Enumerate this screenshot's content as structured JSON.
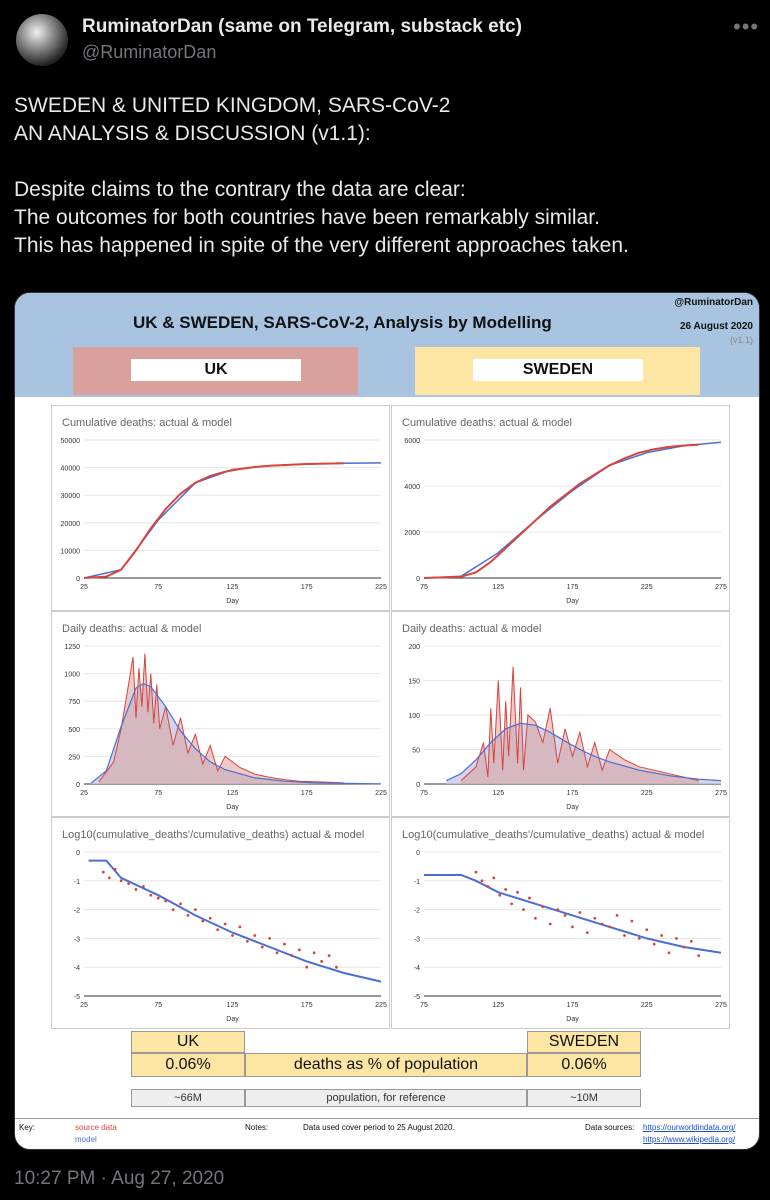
{
  "author": {
    "name": "RuminatorDan (same on Telegram, substack etc)",
    "handle": "@RuminatorDan"
  },
  "tweet": {
    "line1": "SWEDEN & UNITED KINGDOM, SARS-CoV-2",
    "line2": "AN ANALYSIS & DISCUSSION (v1.1):",
    "line3": "Despite claims to the contrary the data are clear:",
    "line4": "The outcomes for both countries have been remarkably similar.",
    "line5": "This has happened in spite of the very different approaches taken."
  },
  "timestamp": "10:27 PM · Aug 27, 2020",
  "more_icon": "•••",
  "image": {
    "title": "UK & SWEDEN, SARS-CoV-2, Analysis by Modelling",
    "handle": "@RuminatorDan",
    "date": "26 August 2020",
    "version": "(v1.1)",
    "left_country": "UK",
    "right_country": "SWEDEN",
    "colors": {
      "header_bg": "#a8c4e0",
      "uk_box": "#d9a09c",
      "sweden_box": "#fde5a4",
      "source": "#d9443a",
      "model": "#4a6fd4"
    },
    "table": {
      "uk_label": "UK",
      "sweden_label": "SWEDEN",
      "uk_pct": "0.06%",
      "sweden_pct": "0.06%",
      "middle_label": "deaths as % of population",
      "uk_pop": "~66M",
      "sweden_pop": "~10M",
      "pop_label": "population, for reference"
    },
    "footer": {
      "key_label": "Key:",
      "source_label": "source data",
      "model_label": "model",
      "notes_label": "Notes:",
      "notes_text": "Data used cover period to 25 August 2020.",
      "sources_label": "Data sources:",
      "source1": "https://ourworldindata.org/",
      "source2": "https://www.wikipedia.org/"
    }
  },
  "chart_data": [
    {
      "type": "line",
      "title": "Cumulative deaths: actual & model",
      "xlabel": "Day",
      "ylabel": "",
      "xlim": [
        25,
        225
      ],
      "ylim": [
        0,
        50000
      ],
      "xticks": [
        25,
        75,
        125,
        175,
        225
      ],
      "yticks": [
        0,
        10000,
        20000,
        30000,
        40000,
        50000
      ],
      "series": [
        {
          "name": "source data",
          "x": [
            25,
            40,
            50,
            60,
            70,
            80,
            90,
            100,
            110,
            120,
            130,
            140,
            150,
            175,
            200
          ],
          "y": [
            0,
            500,
            3000,
            10000,
            18000,
            25000,
            30500,
            34500,
            37000,
            38500,
            39500,
            40200,
            40700,
            41300,
            41600
          ]
        },
        {
          "name": "model",
          "x": [
            25,
            50,
            75,
            100,
            125,
            150,
            175,
            200,
            225
          ],
          "y": [
            0,
            3000,
            21000,
            34500,
            39300,
            40700,
            41300,
            41600,
            41700
          ]
        }
      ]
    },
    {
      "type": "line",
      "title": "Cumulative deaths: actual & model",
      "xlabel": "Day",
      "ylabel": "",
      "xlim": [
        75,
        275
      ],
      "ylim": [
        0,
        6000
      ],
      "xticks": [
        75,
        125,
        175,
        225,
        275
      ],
      "yticks": [
        0,
        2000,
        4000,
        6000
      ],
      "series": [
        {
          "name": "source data",
          "x": [
            75,
            100,
            110,
            120,
            130,
            140,
            150,
            160,
            170,
            180,
            190,
            200,
            210,
            220,
            230,
            240,
            250,
            260
          ],
          "y": [
            0,
            50,
            250,
            700,
            1300,
            1900,
            2500,
            3100,
            3600,
            4100,
            4500,
            4900,
            5200,
            5450,
            5600,
            5700,
            5760,
            5800
          ]
        },
        {
          "name": "model",
          "x": [
            75,
            100,
            125,
            150,
            175,
            200,
            225,
            250,
            275
          ],
          "y": [
            0,
            80,
            1100,
            2500,
            3800,
            4900,
            5450,
            5750,
            5900
          ]
        }
      ]
    },
    {
      "type": "area",
      "title": "Daily deaths: actual & model",
      "xlabel": "Day",
      "ylabel": "",
      "xlim": [
        25,
        225
      ],
      "ylim": [
        0,
        1250
      ],
      "xticks": [
        25,
        75,
        125,
        175,
        225
      ],
      "yticks": [
        0,
        250,
        500,
        750,
        1000,
        1250
      ],
      "series": [
        {
          "name": "source data",
          "x": [
            35,
            45,
            50,
            55,
            58,
            60,
            62,
            64,
            66,
            68,
            70,
            72,
            74,
            76,
            80,
            85,
            90,
            95,
            100,
            105,
            110,
            115,
            120,
            130,
            140,
            150,
            160,
            170,
            180,
            190,
            200
          ],
          "y": [
            20,
            200,
            500,
            900,
            1150,
            600,
            1050,
            700,
            1180,
            650,
            1000,
            550,
            900,
            500,
            700,
            350,
            600,
            280,
            450,
            180,
            350,
            120,
            250,
            150,
            90,
            60,
            40,
            25,
            20,
            15,
            10
          ]
        },
        {
          "name": "model",
          "x": [
            30,
            40,
            50,
            60,
            65,
            70,
            80,
            90,
            100,
            110,
            120,
            140,
            160,
            180,
            200,
            225
          ],
          "y": [
            10,
            120,
            520,
            870,
            910,
            880,
            700,
            480,
            320,
            200,
            130,
            55,
            25,
            10,
            5,
            2
          ]
        }
      ]
    },
    {
      "type": "area",
      "title": "Daily deaths: actual & model",
      "xlabel": "Day",
      "ylabel": "",
      "xlim": [
        75,
        275
      ],
      "ylim": [
        0,
        200
      ],
      "xticks": [
        75,
        125,
        175,
        225,
        275
      ],
      "yticks": [
        0,
        50,
        100,
        150,
        200
      ],
      "series": [
        {
          "name": "source data",
          "x": [
            100,
            110,
            115,
            118,
            120,
            122,
            125,
            128,
            130,
            132,
            135,
            138,
            140,
            142,
            145,
            150,
            155,
            160,
            165,
            170,
            175,
            180,
            185,
            190,
            195,
            200,
            210,
            220,
            230,
            240,
            250,
            260
          ],
          "y": [
            5,
            25,
            60,
            10,
            110,
            30,
            150,
            20,
            120,
            40,
            170,
            30,
            140,
            20,
            100,
            90,
            60,
            110,
            30,
            80,
            40,
            75,
            25,
            60,
            20,
            50,
            35,
            25,
            20,
            15,
            10,
            5
          ]
        },
        {
          "name": "model",
          "x": [
            90,
            100,
            110,
            120,
            130,
            140,
            150,
            160,
            170,
            180,
            190,
            200,
            220,
            240,
            260,
            275
          ],
          "y": [
            5,
            15,
            35,
            60,
            80,
            88,
            85,
            75,
            62,
            50,
            40,
            32,
            20,
            12,
            7,
            5
          ]
        }
      ]
    },
    {
      "type": "scatter",
      "title": "Log10(cumulative_deaths'/cumulative_deaths) actual & model",
      "xlabel": "Day",
      "ylabel": "",
      "xlim": [
        25,
        225
      ],
      "ylim": [
        -5,
        0
      ],
      "xticks": [
        25,
        75,
        125,
        175,
        225
      ],
      "yticks": [
        -5,
        -4,
        -3,
        -2,
        -1,
        0
      ],
      "series": [
        {
          "name": "source data",
          "x": [
            38,
            42,
            46,
            50,
            55,
            60,
            65,
            70,
            75,
            80,
            85,
            90,
            95,
            100,
            105,
            110,
            115,
            120,
            125,
            130,
            135,
            140,
            145,
            150,
            155,
            160,
            165,
            170,
            175,
            180,
            185,
            190,
            195
          ],
          "y": [
            -0.7,
            -0.9,
            -0.6,
            -1.0,
            -1.1,
            -1.3,
            -1.2,
            -1.5,
            -1.6,
            -1.7,
            -2.0,
            -1.8,
            -2.2,
            -2.0,
            -2.4,
            -2.3,
            -2.7,
            -2.5,
            -2.9,
            -2.6,
            -3.1,
            -2.9,
            -3.3,
            -3.0,
            -3.5,
            -3.2,
            -3.6,
            -3.4,
            -4.0,
            -3.5,
            -3.8,
            -3.6,
            -4.0
          ]
        },
        {
          "name": "model",
          "x": [
            28,
            40,
            50,
            75,
            100,
            125,
            150,
            175,
            200,
            225
          ],
          "y": [
            -0.3,
            -0.3,
            -0.9,
            -1.5,
            -2.2,
            -2.8,
            -3.3,
            -3.8,
            -4.2,
            -4.5
          ]
        }
      ]
    },
    {
      "type": "scatter",
      "title": "Log10(cumulative_deaths'/cumulative_deaths) actual & model",
      "xlabel": "Day",
      "ylabel": "",
      "xlim": [
        75,
        275
      ],
      "ylim": [
        -5,
        0
      ],
      "xticks": [
        75,
        125,
        175,
        225,
        275
      ],
      "yticks": [
        -5,
        -4,
        -3,
        -2,
        -1,
        0
      ],
      "series": [
        {
          "name": "source data",
          "x": [
            110,
            114,
            118,
            122,
            126,
            130,
            134,
            138,
            142,
            146,
            150,
            155,
            160,
            165,
            170,
            175,
            180,
            185,
            190,
            195,
            200,
            205,
            210,
            215,
            220,
            225,
            230,
            235,
            240,
            245,
            250,
            255,
            260
          ],
          "y": [
            -0.7,
            -1.0,
            -1.2,
            -0.9,
            -1.5,
            -1.3,
            -1.8,
            -1.4,
            -2.0,
            -1.6,
            -2.3,
            -1.9,
            -2.5,
            -2.0,
            -2.2,
            -2.6,
            -2.1,
            -2.8,
            -2.3,
            -2.5,
            -2.6,
            -2.2,
            -2.9,
            -2.4,
            -3.0,
            -2.7,
            -3.2,
            -2.9,
            -3.5,
            -3.0,
            -3.3,
            -3.1,
            -3.6
          ]
        },
        {
          "name": "model",
          "x": [
            75,
            100,
            110,
            125,
            150,
            175,
            200,
            225,
            250,
            275
          ],
          "y": [
            -0.8,
            -0.8,
            -1.0,
            -1.4,
            -1.8,
            -2.2,
            -2.6,
            -3.0,
            -3.3,
            -3.5
          ]
        }
      ]
    }
  ]
}
